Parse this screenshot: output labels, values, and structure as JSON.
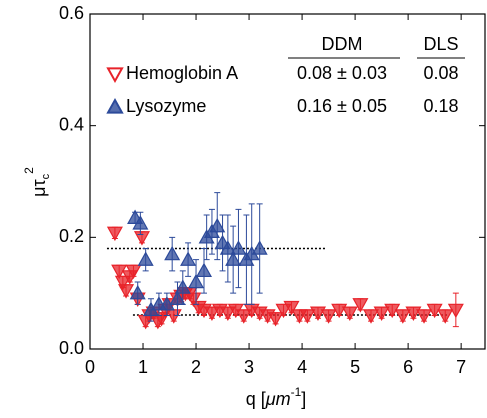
{
  "chart_data": {
    "type": "scatter",
    "x_label": "q [",
    "x_label_unit": "μm",
    "x_label_sup": "-1",
    "x_label_end": "]",
    "y_label": "μτ",
    "y_label_sub": "c",
    "y_label_sup": "2",
    "xlim": [
      0,
      7.45
    ],
    "ylim": [
      0,
      0.6
    ],
    "xticks": [
      0,
      1,
      2,
      3,
      4,
      5,
      6,
      7
    ],
    "yticks": [
      {
        "value": 0,
        "label": "0.0"
      },
      {
        "value": 0.2,
        "label": "0.2"
      },
      {
        "value": 0.4,
        "label": "0.4"
      },
      {
        "value": 0.6,
        "label": "0.6"
      }
    ],
    "series": [
      {
        "name": "Hemoglobin A",
        "color": "#e8232a",
        "marker": "triangle-down",
        "x": [
          0.47,
          0.55,
          0.62,
          0.68,
          0.75,
          0.82,
          0.9,
          0.98,
          1.05,
          1.12,
          1.2,
          1.28,
          1.35,
          1.42,
          1.5,
          1.58,
          1.65,
          1.72,
          1.8,
          1.88,
          1.95,
          2.05,
          2.15,
          2.3,
          2.45,
          2.6,
          2.75,
          2.9,
          3.05,
          3.2,
          3.35,
          3.5,
          3.65,
          3.8,
          3.95,
          4.1,
          4.3,
          4.5,
          4.7,
          4.9,
          5.1,
          5.3,
          5.5,
          5.7,
          5.9,
          6.1,
          6.3,
          6.5,
          6.7,
          6.9
        ],
        "values": [
          0.208,
          0.14,
          0.12,
          0.105,
          0.13,
          0.14,
          0.09,
          0.2,
          0.05,
          0.06,
          0.065,
          0.05,
          0.055,
          0.07,
          0.08,
          0.06,
          0.09,
          0.095,
          0.1,
          0.1,
          0.09,
          0.075,
          0.07,
          0.065,
          0.07,
          0.065,
          0.07,
          0.06,
          0.07,
          0.065,
          0.06,
          0.055,
          0.07,
          0.075,
          0.06,
          0.06,
          0.065,
          0.06,
          0.07,
          0.065,
          0.08,
          0.06,
          0.065,
          0.07,
          0.06,
          0.065,
          0.06,
          0.07,
          0.06,
          0.07
        ],
        "errors": [
          0.01,
          0.01,
          0.01,
          0.01,
          0.01,
          0.01,
          0.01,
          0.01,
          0.01,
          0.01,
          0.01,
          0.01,
          0.01,
          0.01,
          0.01,
          0.01,
          0.01,
          0.01,
          0.01,
          0.01,
          0.01,
          0.01,
          0.01,
          0.01,
          0.01,
          0.01,
          0.01,
          0.01,
          0.01,
          0.01,
          0.01,
          0.01,
          0.01,
          0.01,
          0.01,
          0.01,
          0.01,
          0.01,
          0.01,
          0.01,
          0.01,
          0.01,
          0.01,
          0.01,
          0.01,
          0.01,
          0.01,
          0.01,
          0.01,
          0.03
        ]
      },
      {
        "name": "Lysozyme",
        "color": "#2c4a9a",
        "marker": "triangle-up",
        "x": [
          0.85,
          0.9,
          0.95,
          1.05,
          1.15,
          1.3,
          1.45,
          1.55,
          1.65,
          1.75,
          1.85,
          2.0,
          2.15,
          2.2,
          2.3,
          2.4,
          2.5,
          2.6,
          2.7,
          2.8,
          2.95,
          3.05,
          3.2
        ],
        "values": [
          0.235,
          0.1,
          0.225,
          0.16,
          0.07,
          0.08,
          0.08,
          0.17,
          0.09,
          0.11,
          0.16,
          0.12,
          0.14,
          0.2,
          0.21,
          0.22,
          0.19,
          0.18,
          0.16,
          0.18,
          0.16,
          0.17,
          0.18
        ],
        "errors": [
          0.01,
          0.02,
          0.02,
          0.02,
          0.02,
          0.02,
          0.02,
          0.03,
          0.03,
          0.03,
          0.03,
          0.04,
          0.04,
          0.04,
          0.04,
          0.06,
          0.05,
          0.06,
          0.06,
          0.07,
          0.08,
          0.09,
          0.08
        ]
      }
    ],
    "reference_lines": [
      {
        "y": 0.18,
        "x": [
          0.32,
          4.44
        ]
      },
      {
        "y": 0.061,
        "x": [
          0.81,
          6.78
        ]
      }
    ],
    "legend_table": {
      "headers": [
        "DDM",
        "DLS"
      ],
      "rows": [
        [
          "0.08 ± 0.03",
          "0.08"
        ],
        [
          "0.16 ± 0.05",
          "0.18"
        ]
      ]
    },
    "legend": "upper left"
  }
}
